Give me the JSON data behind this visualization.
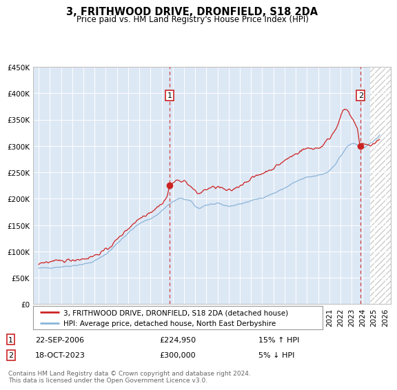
{
  "title": "3, FRITHWOOD DRIVE, DRONFIELD, S18 2DA",
  "subtitle": "Price paid vs. HM Land Registry's House Price Index (HPI)",
  "ylim": [
    0,
    450000
  ],
  "yticks": [
    0,
    50000,
    100000,
    150000,
    200000,
    250000,
    300000,
    350000,
    400000,
    450000
  ],
  "ytick_labels": [
    "£0",
    "£50K",
    "£100K",
    "£150K",
    "£200K",
    "£250K",
    "£300K",
    "£350K",
    "£400K",
    "£450K"
  ],
  "xlim_start": 1994.5,
  "xlim_end": 2026.5,
  "hpi_color": "#8ab4d8",
  "price_color": "#cc2222",
  "bg_color": "#dde8f5",
  "grid_color": "#ffffff",
  "sale1_date": 2006.73,
  "sale1_price": 224950,
  "sale1_label": "1",
  "sale2_date": 2023.8,
  "sale2_price": 300000,
  "sale2_label": "2",
  "hatch_start": 2024.67,
  "legend_line1": "3, FRITHWOOD DRIVE, DRONFIELD, S18 2DA (detached house)",
  "legend_line2": "HPI: Average price, detached house, North East Derbyshire",
  "table_row1": [
    "1",
    "22-SEP-2006",
    "£224,950",
    "15% ↑ HPI"
  ],
  "table_row2": [
    "2",
    "18-OCT-2023",
    "£300,000",
    "5% ↓ HPI"
  ],
  "footer": "Contains HM Land Registry data © Crown copyright and database right 2024.\nThis data is licensed under the Open Government Licence v3.0.",
  "title_fontsize": 10.5,
  "subtitle_fontsize": 8.5,
  "tick_fontsize": 7.5,
  "legend_fontsize": 7.5,
  "table_fontsize": 8,
  "footer_fontsize": 6.5
}
